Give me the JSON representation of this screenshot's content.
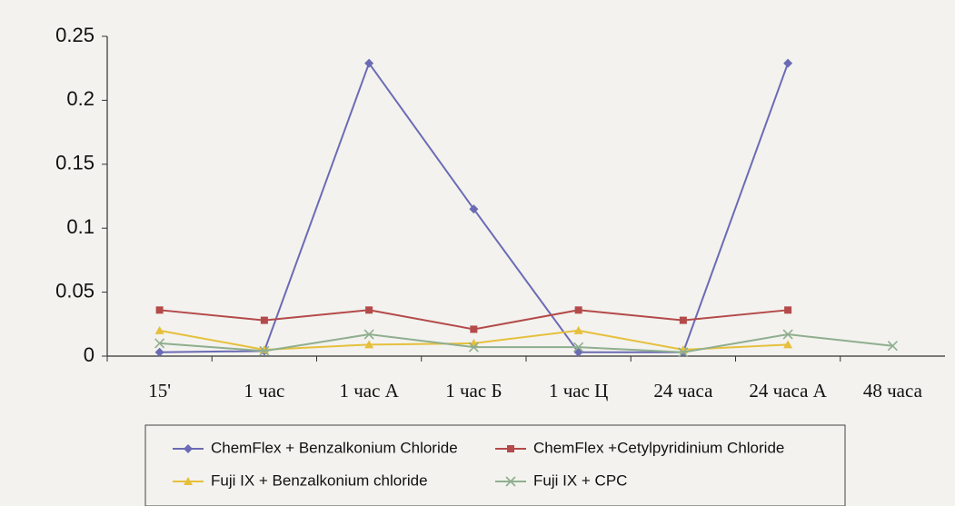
{
  "chart_data": {
    "type": "line",
    "categories": [
      "15'",
      "1 час",
      "1 час А",
      "1 час Б",
      "1 час Ц",
      "24 часа",
      "24 часа А",
      "48 часа"
    ],
    "series": [
      {
        "name": "ChemFlex + Benzalkonium Chloride",
        "color": "#6b6bb5",
        "marker": "diamond",
        "values": [
          0.003,
          0.004,
          0.229,
          0.115,
          0.003,
          0.003,
          0.229,
          null
        ]
      },
      {
        "name": "ChemFlex +Cetylpyridinium Chloride",
        "color": "#b44a4a",
        "marker": "square",
        "values": [
          0.036,
          0.028,
          0.036,
          0.021,
          0.036,
          0.028,
          0.036,
          null
        ]
      },
      {
        "name": "Fuji IX + Benzalkonium chloride",
        "color": "#e6c03c",
        "marker": "triangle",
        "values": [
          0.02,
          0.005,
          0.009,
          0.01,
          0.02,
          0.005,
          0.009,
          null
        ]
      },
      {
        "name": "Fuji IX + CPC",
        "color": "#8fae8f",
        "marker": "x",
        "values": [
          0.01,
          0.004,
          0.017,
          0.007,
          0.007,
          0.003,
          0.017,
          0.008
        ]
      }
    ],
    "ylim": [
      0,
      0.25
    ],
    "yticks": [
      0,
      0.05,
      0.1,
      0.15,
      0.2,
      0.25
    ],
    "grid": false,
    "legend": "bottom"
  }
}
